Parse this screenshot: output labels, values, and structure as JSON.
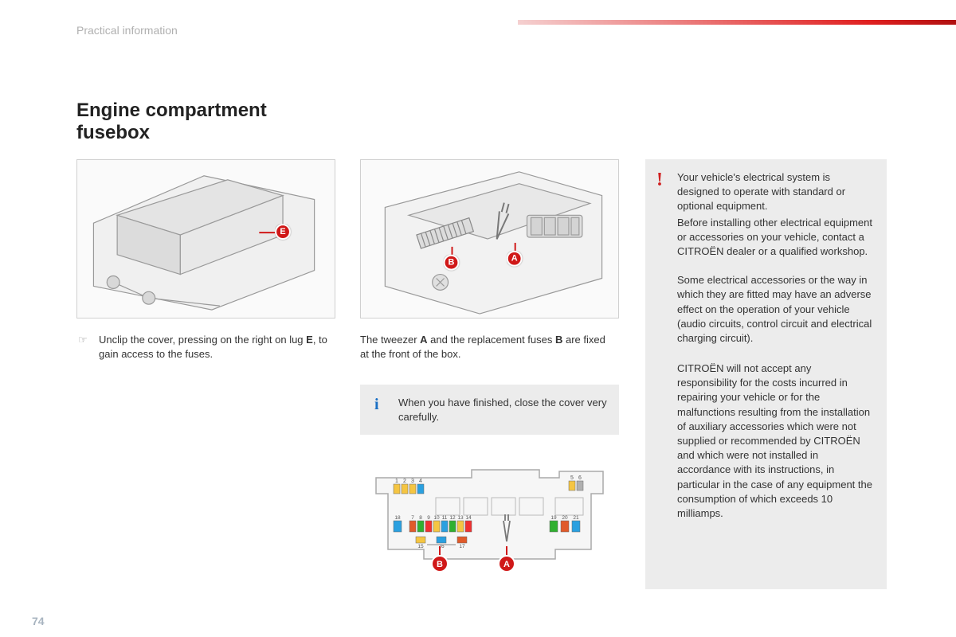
{
  "chapter": "Practical information",
  "title_line1": "Engine compartment",
  "title_line2": "fusebox",
  "page_number": "74",
  "caption1_pre": "Unclip the cover, pressing on the right on lug ",
  "caption1_bold": "E",
  "caption1_post": ", to gain access to the fuses.",
  "caption2_pre": "The tweezer ",
  "caption2_bold1": "A",
  "caption2_mid": " and the replacement fuses ",
  "caption2_bold2": "B",
  "caption2_post": " are fixed at the front of the box.",
  "info_text": "When you have finished, close the cover very carefully.",
  "warn_p1": "Your vehicle's electrical system is designed to operate with standard or optional equipment.",
  "warn_p2": "Before installing other electrical equipment or accessories on your vehicle, contact a CITROËN dealer or a qualified workshop.",
  "warn_p3": "Some electrical accessories or the way in which they are fitted may have an adverse effect on the operation of your vehicle (audio circuits, control circuit and electrical charging circuit).",
  "warn_p4": "CITROËN will not accept any responsibility for the costs incurred in repairing your vehicle or for the malfunctions resulting from the installation of auxiliary accessories which were not supplied or recommended by CITROËN and which were not installed in accordance with its instructions, in particular in the case of any equipment the consumption of which exceeds 10 milliamps.",
  "callouts": {
    "E": "E",
    "A": "A",
    "B": "B"
  },
  "fusemap": {
    "top_labels_left": [
      "1",
      "2",
      "3",
      "4"
    ],
    "top_labels_right": [
      "5",
      "6"
    ],
    "mid_labels": [
      "18",
      "7",
      "8",
      "9",
      "10",
      "11",
      "12",
      "13",
      "14",
      "19",
      "20",
      "21"
    ],
    "bottom_labels": [
      "15",
      "16",
      "17"
    ],
    "fuse_colors": {
      "1": "#f5c542",
      "2": "#f5c542",
      "3": "#f5c542",
      "4": "#2aa0e0",
      "5": "#f5c542",
      "6": "#b0b0b0",
      "18": "#2aa0e0",
      "7": "#e05a2a",
      "8": "#30b030",
      "9": "#f03030",
      "10": "#f5c542",
      "11": "#2aa0e0",
      "12": "#30b030",
      "13": "#f5c542",
      "14": "#f03030",
      "19": "#30b030",
      "20": "#e05a2a",
      "21": "#2aa0e0",
      "15": "#f5c542",
      "16": "#2aa0e0",
      "17": "#e05a2a"
    }
  },
  "colors": {
    "callout_bg": "#d01818",
    "info_icon": "#1a6fc4",
    "warn_icon": "#d02020",
    "box_bg": "#ececec",
    "line": "#888888"
  }
}
